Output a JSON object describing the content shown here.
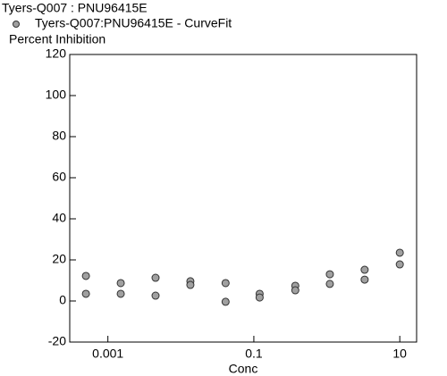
{
  "chart_data": {
    "type": "scatter",
    "title": "Tyers-Q007 : PNU96415E",
    "ylabel": "Percent Inhibition",
    "xlabel": "Conc",
    "xscale": "log",
    "xlim": [
      0.0003,
      17
    ],
    "xticks": [
      0.001,
      0.1,
      10
    ],
    "ylim": [
      -20,
      120
    ],
    "yticks": [
      -20,
      0,
      20,
      40,
      60,
      80,
      100,
      120
    ],
    "series": [
      {
        "name": "Tyers-Q007:PNU96415E - CurveFit",
        "color": "#a0a0a0",
        "x": [
          0.0005,
          0.0005,
          0.0015,
          0.0015,
          0.0045,
          0.0045,
          0.0135,
          0.0135,
          0.041,
          0.041,
          0.12,
          0.12,
          0.37,
          0.37,
          1.1,
          1.1,
          3.3,
          3.3,
          10,
          10
        ],
        "values": [
          12.2,
          3.5,
          8.7,
          3.5,
          11.3,
          2.6,
          9.6,
          7.8,
          8.7,
          -0.4,
          3.5,
          1.7,
          7.4,
          5.2,
          13,
          8.3,
          15.2,
          10.4,
          23.5,
          17.8
        ]
      }
    ]
  }
}
